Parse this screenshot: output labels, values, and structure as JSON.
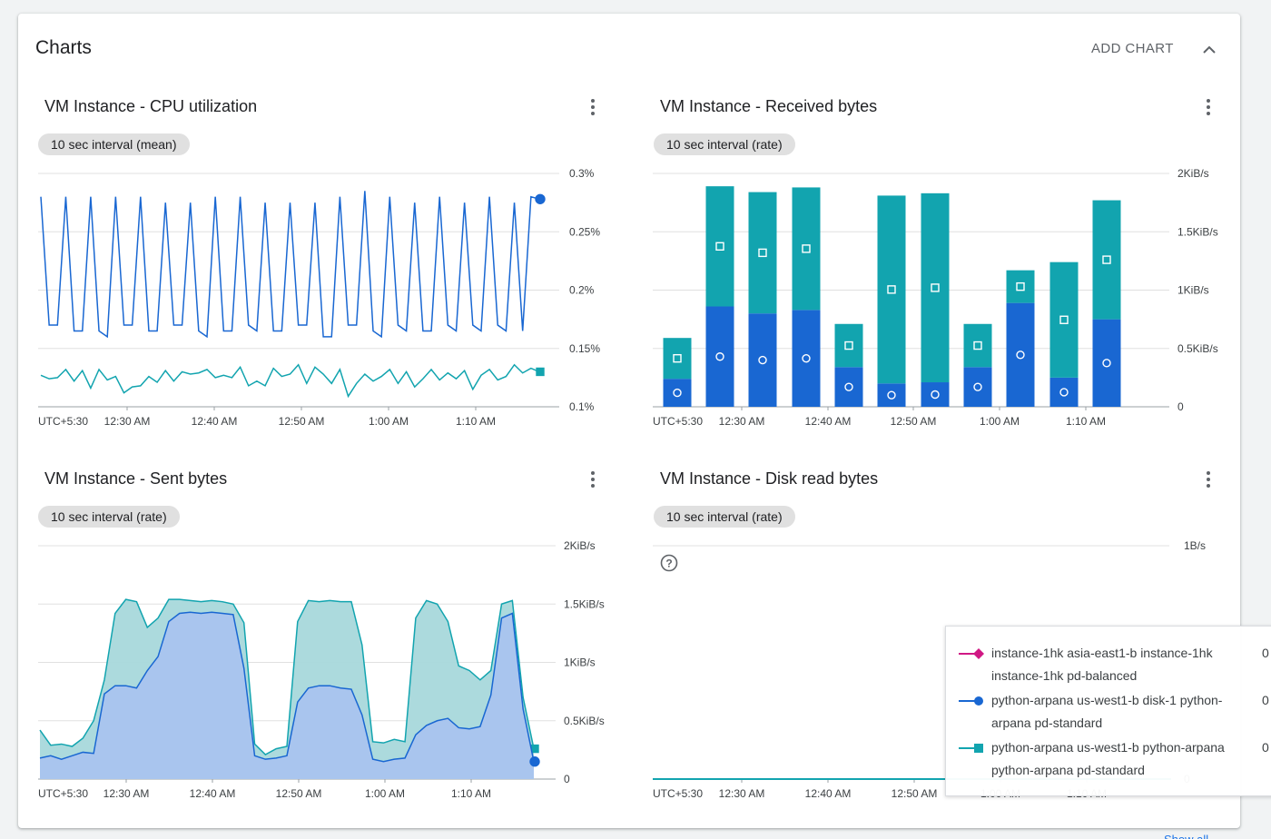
{
  "panel": {
    "title": "Charts",
    "add_chart_label": "ADD CHART",
    "collapse_icon": "chevron-up-icon",
    "footer_link": "Show all"
  },
  "timezone_label": "UTC+5:30",
  "colors": {
    "blue": "#1967d2",
    "teal": "#12a4af",
    "magenta": "#d01884",
    "grid": "#e0e0e0",
    "axis_text": "#3c4043"
  },
  "cards": [
    {
      "title": "VM Instance - CPU utilization",
      "chip": "10 sec interval (mean)"
    },
    {
      "title": "VM Instance - Received bytes",
      "chip": "10 sec interval (rate)"
    },
    {
      "title": "VM Instance - Sent bytes",
      "chip": "10 sec interval (rate)"
    },
    {
      "title": "VM Instance - Disk read bytes",
      "chip": "10 sec interval (rate)"
    }
  ],
  "legend": {
    "items": [
      {
        "label": "instance-1hk asia-east1-b instance-1hk instance-1hk pd-balanced",
        "value": "0",
        "color": "#d01884",
        "marker": "diamond"
      },
      {
        "label": "python-arpana us-west1-b disk-1 python-arpana pd-standard",
        "value": "0",
        "color": "#1967d2",
        "marker": "circle"
      },
      {
        "label": "python-arpana us-west1-b python-arpana python-arpana pd-standard",
        "value": "0",
        "color": "#12a4af",
        "marker": "square"
      }
    ]
  },
  "chart_data": [
    {
      "type": "line",
      "title": "VM Instance - CPU utilization",
      "x_ticks": [
        "12:30 AM",
        "12:40 AM",
        "12:50 AM",
        "1:00 AM",
        "1:10 AM"
      ],
      "x_range": [
        "12:20 AM",
        "1:18 AM"
      ],
      "y_ticks": [
        "0.1%",
        "0.15%",
        "0.2%",
        "0.25%",
        "0.3%"
      ],
      "ylim": [
        0.1,
        0.3
      ],
      "y_unit": "%",
      "grid": true,
      "series": [
        {
          "color": "#1967d2",
          "marker": "circle",
          "values": [
            0.28,
            0.17,
            0.17,
            0.28,
            0.165,
            0.165,
            0.28,
            0.165,
            0.16,
            0.28,
            0.17,
            0.17,
            0.28,
            0.165,
            0.165,
            0.275,
            0.17,
            0.17,
            0.275,
            0.165,
            0.16,
            0.28,
            0.165,
            0.165,
            0.28,
            0.17,
            0.165,
            0.275,
            0.165,
            0.165,
            0.275,
            0.17,
            0.17,
            0.275,
            0.16,
            0.16,
            0.28,
            0.17,
            0.17,
            0.285,
            0.165,
            0.16,
            0.28,
            0.17,
            0.165,
            0.275,
            0.165,
            0.165,
            0.28,
            0.17,
            0.165,
            0.275,
            0.17,
            0.165,
            0.28,
            0.17,
            0.165,
            0.275,
            0.165,
            0.28,
            0.278
          ]
        },
        {
          "color": "#12a4af",
          "marker": "square",
          "values": [
            0.127,
            0.124,
            0.125,
            0.132,
            0.122,
            0.131,
            0.116,
            0.132,
            0.123,
            0.126,
            0.112,
            0.117,
            0.118,
            0.126,
            0.121,
            0.131,
            0.122,
            0.13,
            0.128,
            0.129,
            0.132,
            0.125,
            0.127,
            0.125,
            0.134,
            0.118,
            0.122,
            0.118,
            0.133,
            0.126,
            0.128,
            0.136,
            0.12,
            0.134,
            0.128,
            0.12,
            0.132,
            0.109,
            0.12,
            0.128,
            0.122,
            0.126,
            0.132,
            0.12,
            0.13,
            0.117,
            0.124,
            0.132,
            0.123,
            0.129,
            0.124,
            0.131,
            0.115,
            0.127,
            0.132,
            0.123,
            0.126,
            0.136,
            0.129,
            0.133,
            0.13
          ]
        }
      ]
    },
    {
      "type": "bar",
      "stacked": true,
      "title": "VM Instance - Received bytes",
      "x_ticks": [
        "12:30 AM",
        "12:40 AM",
        "12:50 AM",
        "1:00 AM",
        "1:10 AM"
      ],
      "y_ticks": [
        "0",
        "0.5KiB/s",
        "1KiB/s",
        "1.5KiB/s",
        "2KiB/s"
      ],
      "ylim": [
        0,
        2
      ],
      "y_unit": "KiB/s",
      "grid": true,
      "series": [
        {
          "color": "#1967d2",
          "marker": "circle",
          "values": [
            0.24,
            0.86,
            0.8,
            0.83,
            0.34,
            0.2,
            0.21,
            0.34,
            0.89,
            0.25,
            0.75
          ]
        },
        {
          "color": "#12a4af",
          "marker": "square",
          "values": [
            0.35,
            1.03,
            1.04,
            1.05,
            0.37,
            1.61,
            1.62,
            0.37,
            0.28,
            0.99,
            1.02
          ]
        }
      ]
    },
    {
      "type": "area",
      "title": "VM Instance - Sent bytes",
      "x_ticks": [
        "12:30 AM",
        "12:40 AM",
        "12:50 AM",
        "1:00 AM",
        "1:10 AM"
      ],
      "y_ticks": [
        "0",
        "0.5KiB/s",
        "1KiB/s",
        "1.5KiB/s",
        "2KiB/s"
      ],
      "ylim": [
        0,
        2
      ],
      "y_unit": "KiB/s",
      "grid": true,
      "series": [
        {
          "color": "#12a4af",
          "marker": "square",
          "values": [
            0.42,
            0.29,
            0.3,
            0.28,
            0.35,
            0.5,
            0.85,
            1.42,
            1.54,
            1.52,
            1.3,
            1.38,
            1.54,
            1.54,
            1.53,
            1.52,
            1.53,
            1.52,
            1.5,
            1.34,
            0.3,
            0.21,
            0.26,
            0.28,
            1.35,
            1.53,
            1.52,
            1.53,
            1.52,
            1.52,
            1.15,
            0.32,
            0.31,
            0.34,
            0.32,
            1.38,
            1.53,
            1.5,
            1.35,
            0.97,
            0.93,
            0.85,
            0.93,
            1.5,
            1.53,
            0.7,
            0.26
          ]
        },
        {
          "color": "#1967d2",
          "marker": "circle",
          "values": [
            0.18,
            0.2,
            0.17,
            0.2,
            0.23,
            0.22,
            0.73,
            0.8,
            0.8,
            0.78,
            0.93,
            1.05,
            1.35,
            1.42,
            1.43,
            1.42,
            1.43,
            1.42,
            1.41,
            0.95,
            0.2,
            0.17,
            0.18,
            0.2,
            0.66,
            0.78,
            0.8,
            0.8,
            0.78,
            0.77,
            0.55,
            0.17,
            0.15,
            0.17,
            0.18,
            0.38,
            0.46,
            0.5,
            0.52,
            0.44,
            0.43,
            0.45,
            0.72,
            1.38,
            1.42,
            0.6,
            0.15
          ]
        }
      ]
    },
    {
      "type": "line",
      "title": "VM Instance - Disk read bytes",
      "x_ticks": [
        "12:30 AM",
        "12:40 AM",
        "12:50 AM",
        "1:00 AM",
        "1:10 AM"
      ],
      "y_ticks": [
        "0",
        "1B/s"
      ],
      "ylim": [
        0,
        1
      ],
      "y_unit": "B/s",
      "grid": true,
      "series": [
        {
          "color": "#d01884",
          "marker": "diamond",
          "values": [
            0,
            0
          ]
        },
        {
          "color": "#1967d2",
          "marker": "circle",
          "values": [
            0,
            0
          ]
        },
        {
          "color": "#12a4af",
          "marker": "square",
          "values": [
            0,
            0
          ]
        }
      ]
    }
  ]
}
